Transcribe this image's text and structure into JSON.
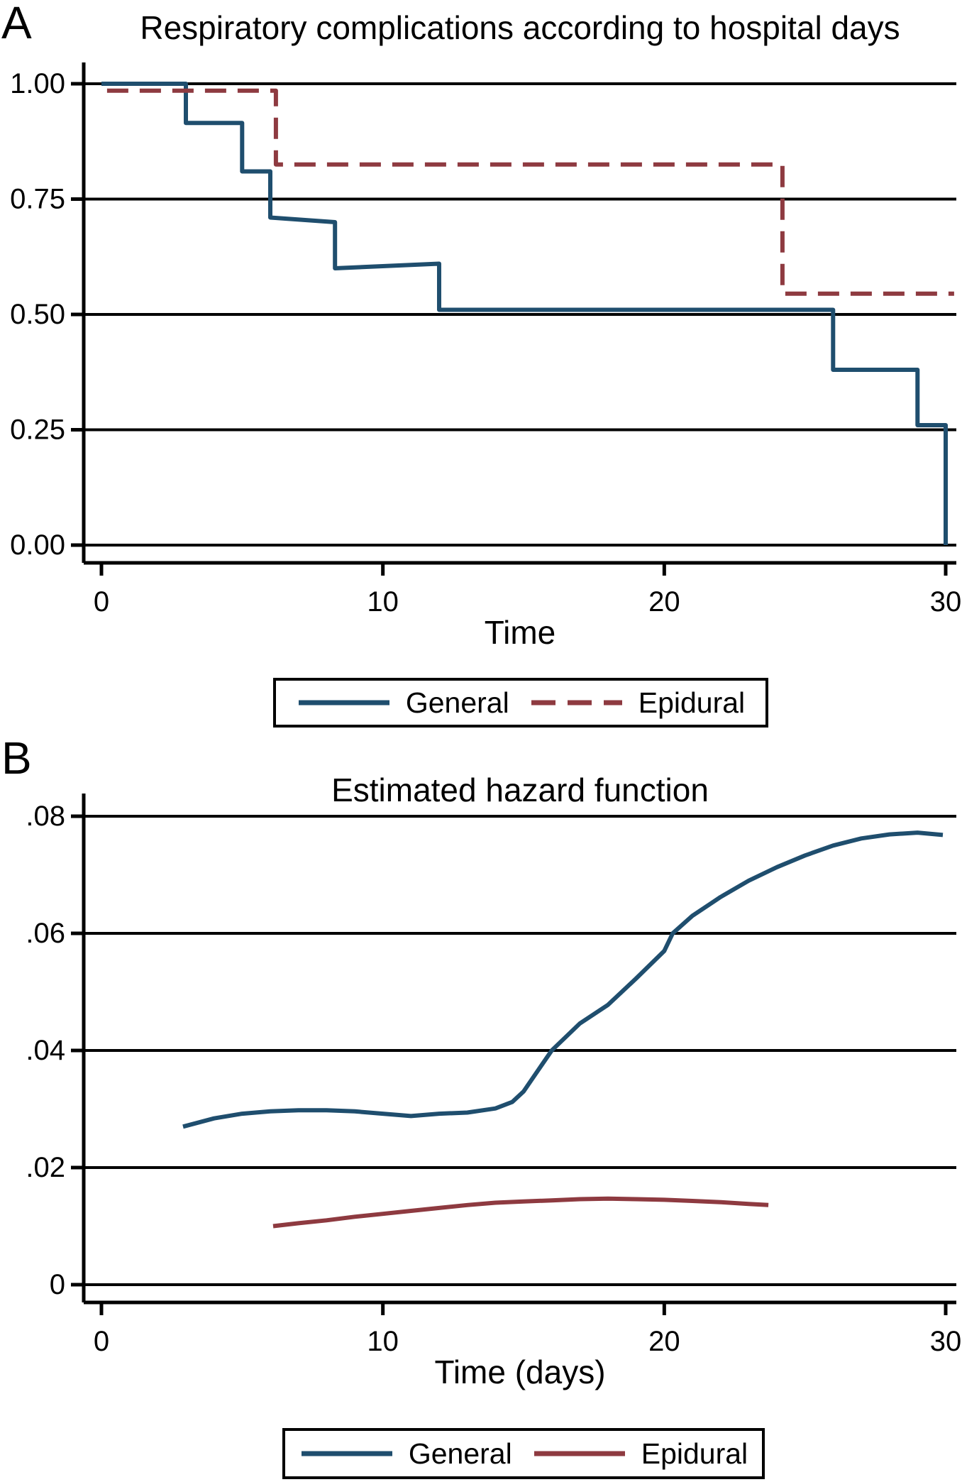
{
  "figure": {
    "background": "#ffffff",
    "colors": {
      "general": "#1f4e6e",
      "epidural": "#8e3a40",
      "axis": "#000000",
      "text": "#000000"
    }
  },
  "chart_data": [
    {
      "panel_label": "A",
      "type": "line",
      "subtype": "kaplan-meier-step",
      "title": "Respiratory complications according to hospital days",
      "xlabel": "Time",
      "ylabel": "",
      "xlim": [
        0,
        30.4
      ],
      "ylim": [
        0,
        1
      ],
      "grid": "horizontal",
      "xticks": {
        "values": [
          0,
          10,
          20,
          30
        ],
        "labels": [
          "0",
          "10",
          "20",
          "30"
        ]
      },
      "yticks": {
        "values": [
          1.0,
          0.75,
          0.5,
          0.25,
          0.0
        ],
        "labels": [
          "1.00",
          "0.75",
          "0.50",
          "0.25",
          "0.00"
        ]
      },
      "legend": {
        "position": "bottom-center",
        "entries": [
          {
            "label": "General",
            "series": 0
          },
          {
            "label": "Epidural",
            "series": 1
          }
        ]
      },
      "series": [
        {
          "name": "General",
          "color": "#1f4e6e",
          "dash": "solid",
          "points": [
            [
              0,
              1.0
            ],
            [
              3,
              1.0
            ],
            [
              3,
              0.915
            ],
            [
              5,
              0.915
            ],
            [
              5,
              0.81
            ],
            [
              6,
              0.81
            ],
            [
              6,
              0.71
            ],
            [
              8.3,
              0.7
            ],
            [
              8.3,
              0.6
            ],
            [
              12,
              0.61
            ],
            [
              12,
              0.51
            ],
            [
              26,
              0.51
            ],
            [
              26,
              0.38
            ],
            [
              29,
              0.38
            ],
            [
              29,
              0.26
            ],
            [
              30,
              0.26
            ],
            [
              30,
              0.0
            ]
          ]
        },
        {
          "name": "Epidural",
          "color": "#8e3a40",
          "dash": "dashed",
          "points": [
            [
              0.2,
              0.985
            ],
            [
              6.2,
              0.985
            ],
            [
              6.2,
              0.825
            ],
            [
              24.2,
              0.825
            ],
            [
              24.2,
              0.545
            ],
            [
              30.3,
              0.545
            ]
          ]
        }
      ]
    },
    {
      "panel_label": "B",
      "type": "line",
      "subtype": "smooth-hazard",
      "title": "Estimated hazard function",
      "xlabel": "Time (days)",
      "ylabel": "",
      "xlim": [
        0,
        30.4
      ],
      "ylim": [
        0,
        0.08
      ],
      "grid": "horizontal",
      "xticks": {
        "values": [
          0,
          10,
          20,
          30
        ],
        "labels": [
          "0",
          "10",
          "20",
          "30"
        ]
      },
      "yticks": {
        "values": [
          0.08,
          0.06,
          0.04,
          0.02,
          0.0
        ],
        "labels": [
          ".08",
          ".06",
          ".04",
          ".02",
          "0"
        ]
      },
      "legend": {
        "position": "bottom-center",
        "entries": [
          {
            "label": "General",
            "series": 0
          },
          {
            "label": "Epidural",
            "series": 1
          }
        ]
      },
      "series": [
        {
          "name": "General",
          "color": "#1f4e6e",
          "dash": "solid",
          "points": [
            [
              2.9,
              0.027
            ],
            [
              4,
              0.0284
            ],
            [
              5,
              0.0292
            ],
            [
              6,
              0.0296
            ],
            [
              7,
              0.0298
            ],
            [
              8,
              0.0298
            ],
            [
              9,
              0.0296
            ],
            [
              10,
              0.0292
            ],
            [
              11,
              0.0288
            ],
            [
              12,
              0.0292
            ],
            [
              13,
              0.0294
            ],
            [
              14,
              0.0301
            ],
            [
              14.6,
              0.0312
            ],
            [
              15,
              0.033
            ],
            [
              15.5,
              0.0365
            ],
            [
              16,
              0.04
            ],
            [
              17,
              0.0446
            ],
            [
              18,
              0.0478
            ],
            [
              19,
              0.0523
            ],
            [
              20,
              0.057
            ],
            [
              20.3,
              0.06
            ],
            [
              21,
              0.063
            ],
            [
              22,
              0.0662
            ],
            [
              23,
              0.069
            ],
            [
              24,
              0.0713
            ],
            [
              25,
              0.0733
            ],
            [
              26,
              0.075
            ],
            [
              27,
              0.0762
            ],
            [
              28,
              0.0769
            ],
            [
              29,
              0.0772
            ],
            [
              29.9,
              0.0768
            ]
          ]
        },
        {
          "name": "Epidural",
          "color": "#8e3a40",
          "dash": "solid",
          "points": [
            [
              6.1,
              0.01
            ],
            [
              7,
              0.0105
            ],
            [
              8,
              0.011
            ],
            [
              9,
              0.0116
            ],
            [
              10,
              0.0121
            ],
            [
              11,
              0.0126
            ],
            [
              12,
              0.0131
            ],
            [
              13,
              0.0136
            ],
            [
              14,
              0.014
            ],
            [
              15,
              0.0142
            ],
            [
              16,
              0.0144
            ],
            [
              17,
              0.0146
            ],
            [
              18,
              0.0147
            ],
            [
              19,
              0.0146
            ],
            [
              20,
              0.0145
            ],
            [
              21,
              0.0143
            ],
            [
              22,
              0.0141
            ],
            [
              23,
              0.0138
            ],
            [
              23.7,
              0.0136
            ]
          ]
        }
      ]
    }
  ]
}
